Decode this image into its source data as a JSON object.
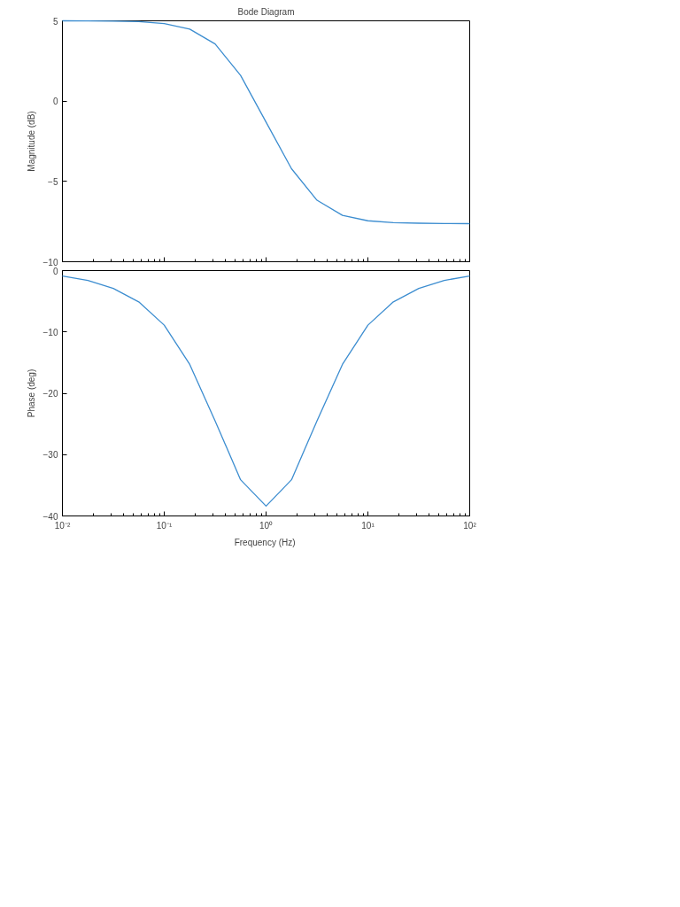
{
  "chart_data": [
    {
      "type": "line",
      "title": "Bode Diagram",
      "ylabel": "Magnitude (dB)",
      "x": [
        0.01,
        0.0178,
        0.0316,
        0.0562,
        0.1,
        0.178,
        0.316,
        0.562,
        1,
        1.778,
        3.162,
        5.623,
        10,
        17.78,
        31.62,
        56.2,
        100
      ],
      "series": [
        {
          "color": "#3c8dd0",
          "values": [
            5.0,
            4.99,
            4.98,
            4.95,
            4.83,
            4.48,
            3.56,
            1.6,
            -1.31,
            -4.21,
            -6.17,
            -7.11,
            -7.45,
            -7.57,
            -7.6,
            -7.62,
            -7.63
          ]
        }
      ],
      "log": "x",
      "xlim": [
        0.01,
        100
      ],
      "xticks": [
        {
          "value": 0.01,
          "label": null
        },
        {
          "value": 0.1,
          "label": null
        },
        {
          "value": 1,
          "label": null
        },
        {
          "value": 10,
          "label": null
        },
        {
          "value": 100,
          "label": null
        }
      ],
      "ylim": [
        -10,
        5
      ],
      "yticks": [
        -10,
        -5,
        0,
        5
      ],
      "tick_labels": "y",
      "grid": false
    },
    {
      "type": "line",
      "xlabel": "Frequency  (Hz)",
      "ylabel": "Phase (deg)",
      "x": [
        0.01,
        0.0178,
        0.0316,
        0.0562,
        0.1,
        0.178,
        0.316,
        0.562,
        1,
        1.778,
        3.162,
        5.623,
        10,
        17.78,
        31.62,
        56.2,
        100
      ],
      "series": [
        {
          "color": "#3c8dd0",
          "values": [
            -0.9,
            -1.6,
            -2.9,
            -5.1,
            -8.9,
            -15.3,
            -24.5,
            -34.1,
            -38.4,
            -34.1,
            -24.5,
            -15.3,
            -8.9,
            -5.1,
            -2.9,
            -1.6,
            -0.9
          ]
        }
      ],
      "log": "x",
      "xlim": [
        0.01,
        100
      ],
      "xticks": [
        {
          "value": 0.01,
          "label": "10⁻²"
        },
        {
          "value": 0.1,
          "label": "10⁻¹"
        },
        {
          "value": 1,
          "label": "10⁰"
        },
        {
          "value": 10,
          "label": "10¹"
        },
        {
          "value": 100,
          "label": "10²"
        }
      ],
      "ylim": [
        -40,
        0
      ],
      "yticks": [
        -40,
        -30,
        -20,
        -10,
        0
      ],
      "grid": false
    }
  ]
}
